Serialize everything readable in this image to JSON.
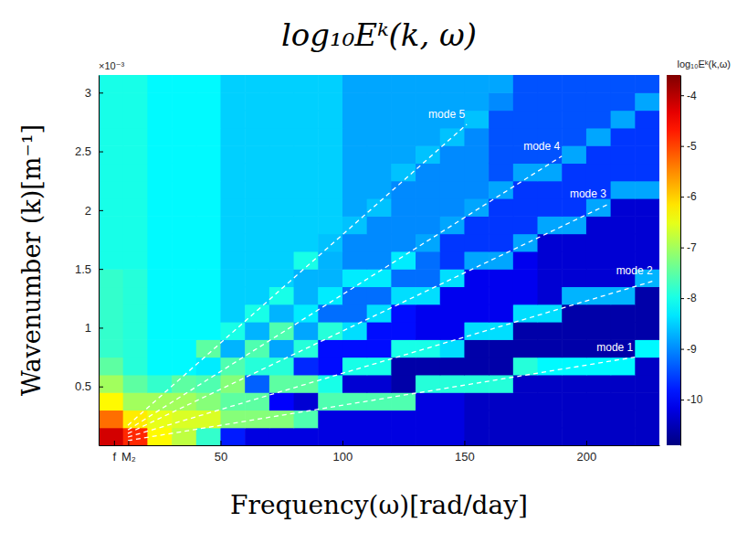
{
  "chart_data": {
    "type": "heatmap",
    "title": "log₁₀Eᵏ(k, ω)",
    "x_label": "Frequency(ω)[rad/day]",
    "y_label": "Wavenumber (k)[m⁻¹]",
    "colorbar_title": "log₁₀Eᵏ(k,ω)",
    "annotations": [
      "×10⁻³"
    ],
    "xlim": [
      0,
      230
    ],
    "ylim": [
      0,
      0.00315
    ],
    "xticks": [
      {
        "value": 6.3,
        "label": "f"
      },
      {
        "value": 12.14,
        "label": "M₂"
      },
      50,
      100,
      150,
      200
    ],
    "yticks": [
      {
        "value": 0.0005,
        "label": "0.5"
      },
      {
        "value": 0.001,
        "label": "1"
      },
      {
        "value": 0.0015,
        "label": "1.5"
      },
      {
        "value": 0.002,
        "label": "2"
      },
      {
        "value": 0.0025,
        "label": "2.5"
      },
      {
        "value": 0.003,
        "label": "3"
      }
    ],
    "zlim": [
      -10.9,
      -3.6
    ],
    "zticks": [
      -10,
      -9,
      -8,
      -7,
      -6,
      -5,
      -4
    ],
    "x_bins": [
      0,
      10,
      20,
      30,
      40,
      50,
      60,
      70,
      80,
      90,
      100,
      110,
      120,
      130,
      140,
      150,
      160,
      170,
      180,
      190,
      200,
      210,
      220,
      230
    ],
    "y_bins": [
      0,
      0.00015,
      0.0003,
      0.00045,
      0.0006,
      0.00075,
      0.0009,
      0.00105,
      0.0012,
      0.00135,
      0.0015,
      0.00165,
      0.0018,
      0.00195,
      0.0021,
      0.00225,
      0.0024,
      0.00255,
      0.0027,
      0.00285,
      0.003,
      0.00315
    ],
    "z": [
      [
        -4.2,
        -4.8,
        -6.3,
        -6.8,
        -7.8,
        -9.8,
        -10.2,
        -10.2,
        -10.2,
        -10.2,
        -10.2,
        -10.2,
        -10.2,
        -10.2,
        -10.2,
        -10.4,
        -10.4,
        -10.4,
        -10.4,
        -10.4,
        -10.4,
        -10.4,
        -10.4
      ],
      [
        -5.3,
        -6.2,
        -6.5,
        -6.6,
        -6.6,
        -7.2,
        -7.2,
        -7.2,
        -7.6,
        -10.2,
        -10.2,
        -10.2,
        -10.2,
        -10.2,
        -10.2,
        -10.4,
        -10.4,
        -10.4,
        -10.4,
        -10.4,
        -10.4,
        -10.4,
        -10.4
      ],
      [
        -6.3,
        -7.0,
        -7.0,
        -7.0,
        -7.2,
        -7.5,
        -7.5,
        -10.0,
        -10.3,
        -7.6,
        -7.6,
        -7.6,
        -7.6,
        -10.2,
        -10.2,
        -10.4,
        -10.4,
        -10.4,
        -10.4,
        -10.4,
        -10.4,
        -10.4,
        -10.4
      ],
      [
        -7.0,
        -7.5,
        -7.8,
        -7.5,
        -7.6,
        -7.2,
        -9.3,
        -7.5,
        -7.5,
        -8.0,
        -10.3,
        -10.3,
        -10.6,
        -7.9,
        -7.9,
        -7.9,
        -7.9,
        -10.4,
        -10.4,
        -10.4,
        -10.4,
        -10.4,
        -10.4
      ],
      [
        -7.5,
        -7.9,
        -8.2,
        -8.2,
        -8.3,
        -7.6,
        -7.9,
        -7.9,
        -9.7,
        -9.9,
        -8.0,
        -8.0,
        -10.6,
        -10.6,
        -10.6,
        -10.6,
        -10.6,
        -7.9,
        -8.2,
        -8.2,
        -8.2,
        -8.2,
        -10.4
      ],
      [
        -7.8,
        -7.9,
        -8.2,
        -8.2,
        -7.5,
        -8.7,
        -7.6,
        -8.8,
        -7.9,
        -9.9,
        -9.9,
        -9.9,
        -8.0,
        -8.0,
        -8.4,
        -10.6,
        -10.6,
        -10.6,
        -10.6,
        -10.6,
        -10.6,
        -10.6,
        -8.2
      ],
      [
        -7.8,
        -7.9,
        -8.2,
        -8.2,
        -8.2,
        -8.0,
        -8.7,
        -7.6,
        -8.8,
        -7.9,
        -8.4,
        -9.9,
        -9.9,
        -10.1,
        -10.1,
        -8.4,
        -8.4,
        -10.6,
        -10.6,
        -10.6,
        -10.6,
        -10.6,
        -10.6
      ],
      [
        -7.8,
        -7.9,
        -8.2,
        -8.2,
        -8.2,
        -8.5,
        -8.0,
        -8.7,
        -8.3,
        -9.2,
        -9.2,
        -8.4,
        -9.9,
        -10.1,
        -10.1,
        -10.1,
        -10.1,
        -8.4,
        -8.4,
        -10.6,
        -10.6,
        -10.6,
        -10.6
      ],
      [
        -7.8,
        -7.9,
        -8.2,
        -8.2,
        -8.2,
        -8.5,
        -8.5,
        -8.0,
        -8.7,
        -8.3,
        -9.2,
        -9.2,
        -8.4,
        -8.4,
        -10.1,
        -10.1,
        -10.1,
        -10.1,
        -10.3,
        -8.7,
        -8.7,
        -8.7,
        -10.6
      ],
      [
        -7.8,
        -7.9,
        -8.2,
        -8.2,
        -8.2,
        -8.5,
        -8.5,
        -8.5,
        -8.7,
        -8.7,
        -8.3,
        -8.3,
        -9.2,
        -9.2,
        -8.4,
        -10.1,
        -10.1,
        -10.1,
        -10.3,
        -10.3,
        -10.3,
        -10.3,
        -8.7
      ],
      [
        -8.0,
        -8.0,
        -8.2,
        -8.2,
        -8.2,
        -8.5,
        -8.5,
        -8.5,
        -8.0,
        -8.7,
        -9.0,
        -9.0,
        -8.3,
        -9.2,
        -9.6,
        -8.8,
        -8.8,
        -10.1,
        -10.3,
        -10.3,
        -10.3,
        -10.3,
        -10.3
      ],
      [
        -8.0,
        -8.0,
        -8.2,
        -8.2,
        -8.2,
        -8.5,
        -8.5,
        -8.5,
        -8.5,
        -8.6,
        -9.0,
        -9.0,
        -9.0,
        -8.8,
        -9.6,
        -9.6,
        -9.6,
        -8.8,
        -10.3,
        -10.3,
        -10.3,
        -10.3,
        -10.3
      ],
      [
        -8.0,
        -8.0,
        -8.2,
        -8.2,
        -8.2,
        -8.5,
        -8.5,
        -8.5,
        -8.5,
        -8.5,
        -8.6,
        -9.0,
        -9.0,
        -9.0,
        -8.8,
        -9.6,
        -9.6,
        -9.6,
        -8.8,
        -8.8,
        -10.3,
        -10.3,
        -10.3
      ],
      [
        -8.0,
        -8.0,
        -8.2,
        -8.2,
        -8.2,
        -8.5,
        -8.5,
        -8.5,
        -8.5,
        -8.5,
        -8.8,
        -8.6,
        -9.0,
        -9.0,
        -9.0,
        -8.8,
        -9.6,
        -9.6,
        -9.6,
        -9.6,
        -8.8,
        -10.3,
        -10.3
      ],
      [
        -8.0,
        -8.0,
        -8.2,
        -8.2,
        -8.2,
        -8.5,
        -8.5,
        -8.5,
        -8.5,
        -8.5,
        -8.8,
        -8.8,
        -9.0,
        -9.0,
        -9.0,
        -9.0,
        -8.8,
        -9.6,
        -9.6,
        -9.6,
        -9.6,
        -8.8,
        -8.8
      ],
      [
        -8.0,
        -8.0,
        -8.2,
        -8.2,
        -8.2,
        -8.5,
        -8.5,
        -8.5,
        -8.5,
        -8.5,
        -8.8,
        -8.8,
        -8.6,
        -9.0,
        -9.0,
        -9.0,
        -9.4,
        -8.8,
        -8.8,
        -9.6,
        -9.6,
        -9.6,
        -9.6
      ],
      [
        -8.0,
        -8.0,
        -8.2,
        -8.2,
        -8.2,
        -8.5,
        -8.5,
        -8.5,
        -8.5,
        -8.5,
        -8.8,
        -8.8,
        -8.8,
        -8.6,
        -9.0,
        -9.0,
        -9.4,
        -9.4,
        -9.4,
        -8.8,
        -9.6,
        -9.6,
        -9.6
      ],
      [
        -8.0,
        -8.0,
        -8.2,
        -8.2,
        -8.2,
        -8.5,
        -8.5,
        -8.5,
        -8.5,
        -8.5,
        -8.8,
        -8.8,
        -8.8,
        -8.8,
        -8.6,
        -9.0,
        -9.4,
        -9.4,
        -9.4,
        -9.4,
        -8.8,
        -9.6,
        -9.6
      ],
      [
        -8.0,
        -8.0,
        -8.2,
        -8.2,
        -8.2,
        -8.5,
        -8.5,
        -8.5,
        -8.5,
        -8.5,
        -8.8,
        -8.8,
        -8.8,
        -8.8,
        -8.8,
        -8.6,
        -9.4,
        -9.4,
        -9.4,
        -9.4,
        -9.4,
        -8.8,
        -9.6
      ],
      [
        -8.0,
        -8.0,
        -8.2,
        -8.2,
        -8.2,
        -8.5,
        -8.5,
        -8.5,
        -8.5,
        -8.5,
        -8.8,
        -8.8,
        -8.8,
        -8.8,
        -8.8,
        -8.8,
        -9.0,
        -9.4,
        -9.4,
        -9.4,
        -9.4,
        -9.4,
        -8.8
      ],
      [
        -8.0,
        -8.0,
        -8.2,
        -8.2,
        -8.2,
        -8.5,
        -8.5,
        -8.5,
        -8.5,
        -8.5,
        -8.8,
        -8.8,
        -8.8,
        -8.8,
        -8.8,
        -8.8,
        -8.8,
        -9.4,
        -9.4,
        -9.4,
        -9.4,
        -9.4,
        -9.4
      ]
    ],
    "series": [
      {
        "name": "mode 1",
        "type": "line",
        "color": "#ffffff",
        "line_style": "dashed",
        "x": [
          12,
          220
        ],
        "values": [
          4e-05,
          0.00075
        ]
      },
      {
        "name": "mode 2",
        "type": "line",
        "color": "#ffffff",
        "line_style": "dashed",
        "x": [
          12,
          228
        ],
        "values": [
          7e-05,
          0.0014
        ]
      },
      {
        "name": "mode 3",
        "type": "line",
        "color": "#ffffff",
        "line_style": "dashed",
        "x": [
          12,
          209
        ],
        "values": [
          0.0001,
          0.00205
        ]
      },
      {
        "name": "mode 4",
        "type": "line",
        "color": "#ffffff",
        "line_style": "dashed",
        "x": [
          12,
          190
        ],
        "values": [
          0.00013,
          0.00246
        ]
      },
      {
        "name": "mode 5",
        "type": "line",
        "color": "#ffffff",
        "line_style": "dashed",
        "x": [
          12,
          151
        ],
        "values": [
          0.00017,
          0.00273
        ]
      }
    ]
  }
}
